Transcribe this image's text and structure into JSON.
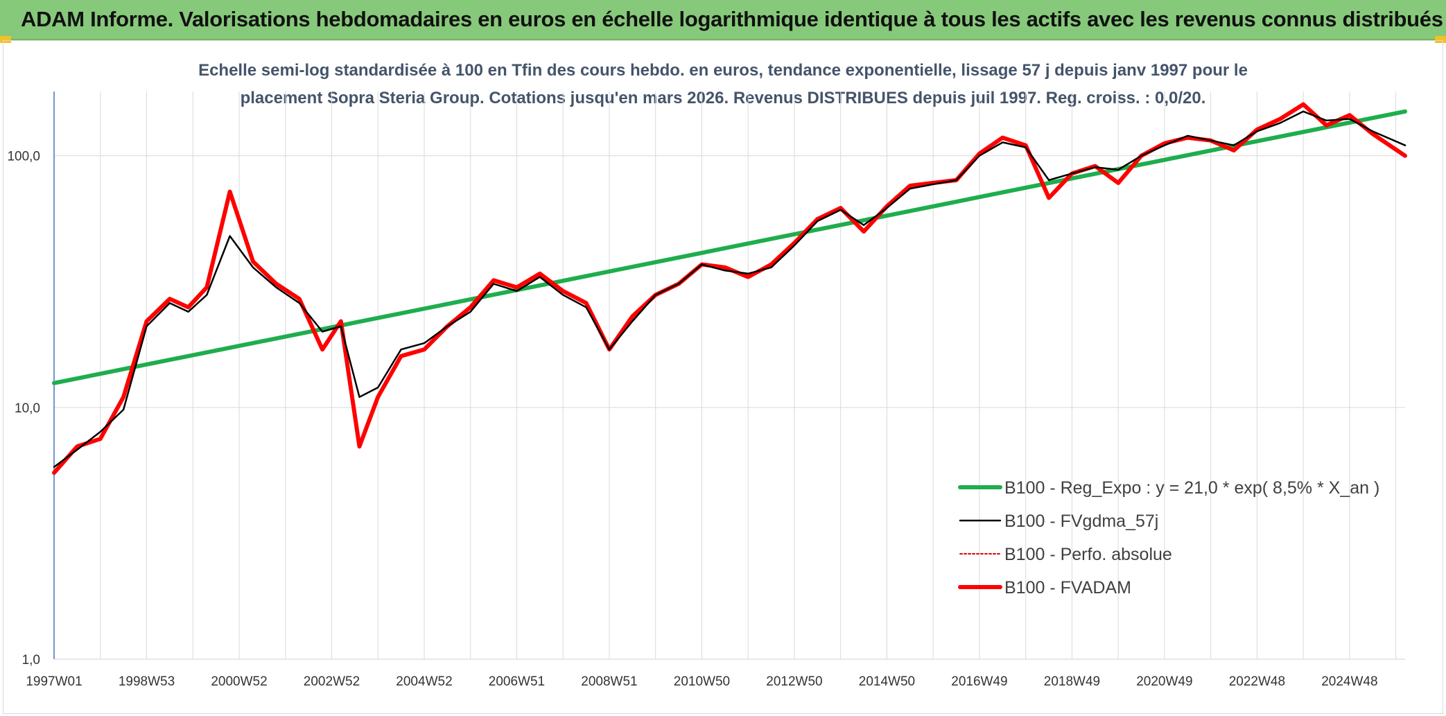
{
  "header": {
    "title": "ADAM Informe. Valorisations hebdomadaires en euros en échelle logarithmique identique à tous les actifs avec les revenus connus distribués"
  },
  "chart_data": {
    "type": "line",
    "title": "Echelle semi-log standardisée à 100 en Tfin des cours hebdo. en euros, tendance exponentielle, lissage 57 j depuis janv 1997 pour le",
    "subtitle": "placement Sopra Steria Group. Cotations jusqu'en mars 2026. Revenus DISTRIBUES depuis juil 1997. Reg. croiss. : 0,0/20.",
    "xlabel": "",
    "ylabel": "",
    "y_scale": "log",
    "ylim": [
      1,
      180
    ],
    "xlim": [
      1997.0,
      2026.2
    ],
    "y_ticks": [
      {
        "value": 1,
        "label": "1,0"
      },
      {
        "value": 10,
        "label": "10,0"
      },
      {
        "value": 100,
        "label": "100,0"
      }
    ],
    "x_ticks": [
      {
        "value": 1997.0,
        "label": "1997W01"
      },
      {
        "value": 1999.0,
        "label": "1998W53"
      },
      {
        "value": 2001.0,
        "label": "2000W52"
      },
      {
        "value": 2003.0,
        "label": "2002W52"
      },
      {
        "value": 2005.0,
        "label": "2004W52"
      },
      {
        "value": 2007.0,
        "label": "2006W51"
      },
      {
        "value": 2009.0,
        "label": "2008W51"
      },
      {
        "value": 2011.0,
        "label": "2010W50"
      },
      {
        "value": 2013.0,
        "label": "2012W50"
      },
      {
        "value": 2015.0,
        "label": "2014W50"
      },
      {
        "value": 2017.0,
        "label": "2016W49"
      },
      {
        "value": 2019.0,
        "label": "2018W49"
      },
      {
        "value": 2021.0,
        "label": "2020W49"
      },
      {
        "value": 2023.0,
        "label": "2022W48"
      },
      {
        "value": 2025.0,
        "label": "2024W48"
      }
    ],
    "grid": true,
    "legend_position": "bottom-right",
    "series": [
      {
        "name": "B100 - Reg_Expo : y = 21,0 * exp( 8,5% *  X_an )",
        "color": "#1fad4d",
        "style": "thick",
        "x": [
          1997.0,
          2026.2
        ],
        "y": [
          12.5,
          150
        ]
      },
      {
        "name": "B100 - FVgdma_57j",
        "color": "#000000",
        "style": "thin",
        "x": [
          1997.0,
          1997.5,
          1998.0,
          1998.5,
          1999.0,
          1999.5,
          1999.9,
          2000.3,
          2000.8,
          2001.3,
          2001.8,
          2002.3,
          2002.8,
          2003.2,
          2003.6,
          2004.0,
          2004.5,
          2005.0,
          2005.5,
          2006.0,
          2006.5,
          2007.0,
          2007.5,
          2008.0,
          2008.5,
          2009.0,
          2009.5,
          2010.0,
          2010.5,
          2011.0,
          2011.5,
          2012.0,
          2012.5,
          2013.0,
          2013.5,
          2014.0,
          2014.5,
          2015.0,
          2015.5,
          2016.0,
          2016.5,
          2017.0,
          2017.5,
          2018.0,
          2018.5,
          2019.0,
          2019.5,
          2020.0,
          2020.5,
          2021.0,
          2021.5,
          2022.0,
          2022.5,
          2023.0,
          2023.5,
          2024.0,
          2024.5,
          2025.0,
          2025.5,
          2026.2
        ],
        "y": [
          5.8,
          6.8,
          8.0,
          9.8,
          21,
          26,
          24,
          28,
          48,
          36,
          30,
          26,
          20,
          21,
          11,
          12,
          17,
          18,
          21,
          24,
          31,
          29,
          33,
          28,
          25,
          17,
          22,
          28,
          31,
          37,
          35,
          34,
          36,
          44,
          55,
          61,
          53,
          62,
          74,
          77,
          80,
          100,
          113,
          108,
          80,
          85,
          90,
          88,
          100,
          110,
          120,
          115,
          110,
          125,
          135,
          150,
          138,
          140,
          125,
          110
        ]
      },
      {
        "name": "B100 - Perfo. absolue",
        "color": "#e00000",
        "style": "dotted",
        "x": [
          1997.0,
          1997.5,
          1998.0,
          1998.5,
          1999.0,
          1999.5,
          1999.9,
          2000.3,
          2000.8,
          2001.3,
          2001.8,
          2002.3,
          2002.8,
          2003.2,
          2003.6,
          2004.0,
          2004.5,
          2005.0,
          2005.5,
          2006.0,
          2006.5,
          2007.0,
          2007.5,
          2008.0,
          2008.5,
          2009.0,
          2009.5,
          2010.0,
          2010.5,
          2011.0,
          2011.5,
          2012.0,
          2012.5,
          2013.0,
          2013.5,
          2014.0,
          2014.5,
          2015.0,
          2015.5,
          2016.0,
          2016.5,
          2017.0,
          2017.5,
          2018.0,
          2018.5,
          2019.0,
          2019.5,
          2020.0,
          2020.5,
          2021.0,
          2021.5,
          2022.0,
          2022.5,
          2023.0,
          2023.5,
          2024.0,
          2024.5,
          2025.0,
          2025.5,
          2026.2
        ],
        "y": [
          5.5,
          7.0,
          7.5,
          11,
          22,
          27,
          25,
          30,
          72,
          38,
          31,
          27,
          17,
          22,
          7,
          11,
          16,
          17,
          21,
          25,
          32,
          30,
          34,
          29,
          26,
          17,
          23,
          28,
          31,
          37,
          36,
          33,
          37,
          45,
          56,
          62,
          50,
          63,
          76,
          78,
          80,
          102,
          118,
          110,
          68,
          85,
          91,
          78,
          100,
          112,
          118,
          115,
          105,
          127,
          140,
          160,
          132,
          145,
          122,
          100
        ]
      },
      {
        "name": "B100 - FVADAM",
        "color": "#ff0000",
        "style": "thick",
        "x": [
          1997.0,
          1997.5,
          1998.0,
          1998.5,
          1999.0,
          1999.5,
          1999.9,
          2000.3,
          2000.8,
          2001.3,
          2001.8,
          2002.3,
          2002.8,
          2003.2,
          2003.6,
          2004.0,
          2004.5,
          2005.0,
          2005.5,
          2006.0,
          2006.5,
          2007.0,
          2007.5,
          2008.0,
          2008.5,
          2009.0,
          2009.5,
          2010.0,
          2010.5,
          2011.0,
          2011.5,
          2012.0,
          2012.5,
          2013.0,
          2013.5,
          2014.0,
          2014.5,
          2015.0,
          2015.5,
          2016.0,
          2016.5,
          2017.0,
          2017.5,
          2018.0,
          2018.5,
          2019.0,
          2019.5,
          2020.0,
          2020.5,
          2021.0,
          2021.5,
          2022.0,
          2022.5,
          2023.0,
          2023.5,
          2024.0,
          2024.5,
          2025.0,
          2025.5,
          2026.2
        ],
        "y": [
          5.5,
          7.0,
          7.5,
          11,
          22,
          27,
          25,
          30,
          72,
          38,
          31,
          27,
          17,
          22,
          7,
          11,
          16,
          17,
          21,
          25,
          32,
          30,
          34,
          29,
          26,
          17,
          23,
          28,
          31,
          37,
          36,
          33,
          37,
          45,
          56,
          62,
          50,
          63,
          76,
          78,
          80,
          102,
          118,
          110,
          68,
          85,
          91,
          78,
          100,
          112,
          118,
          115,
          105,
          127,
          140,
          160,
          132,
          145,
          122,
          100
        ]
      }
    ]
  }
}
